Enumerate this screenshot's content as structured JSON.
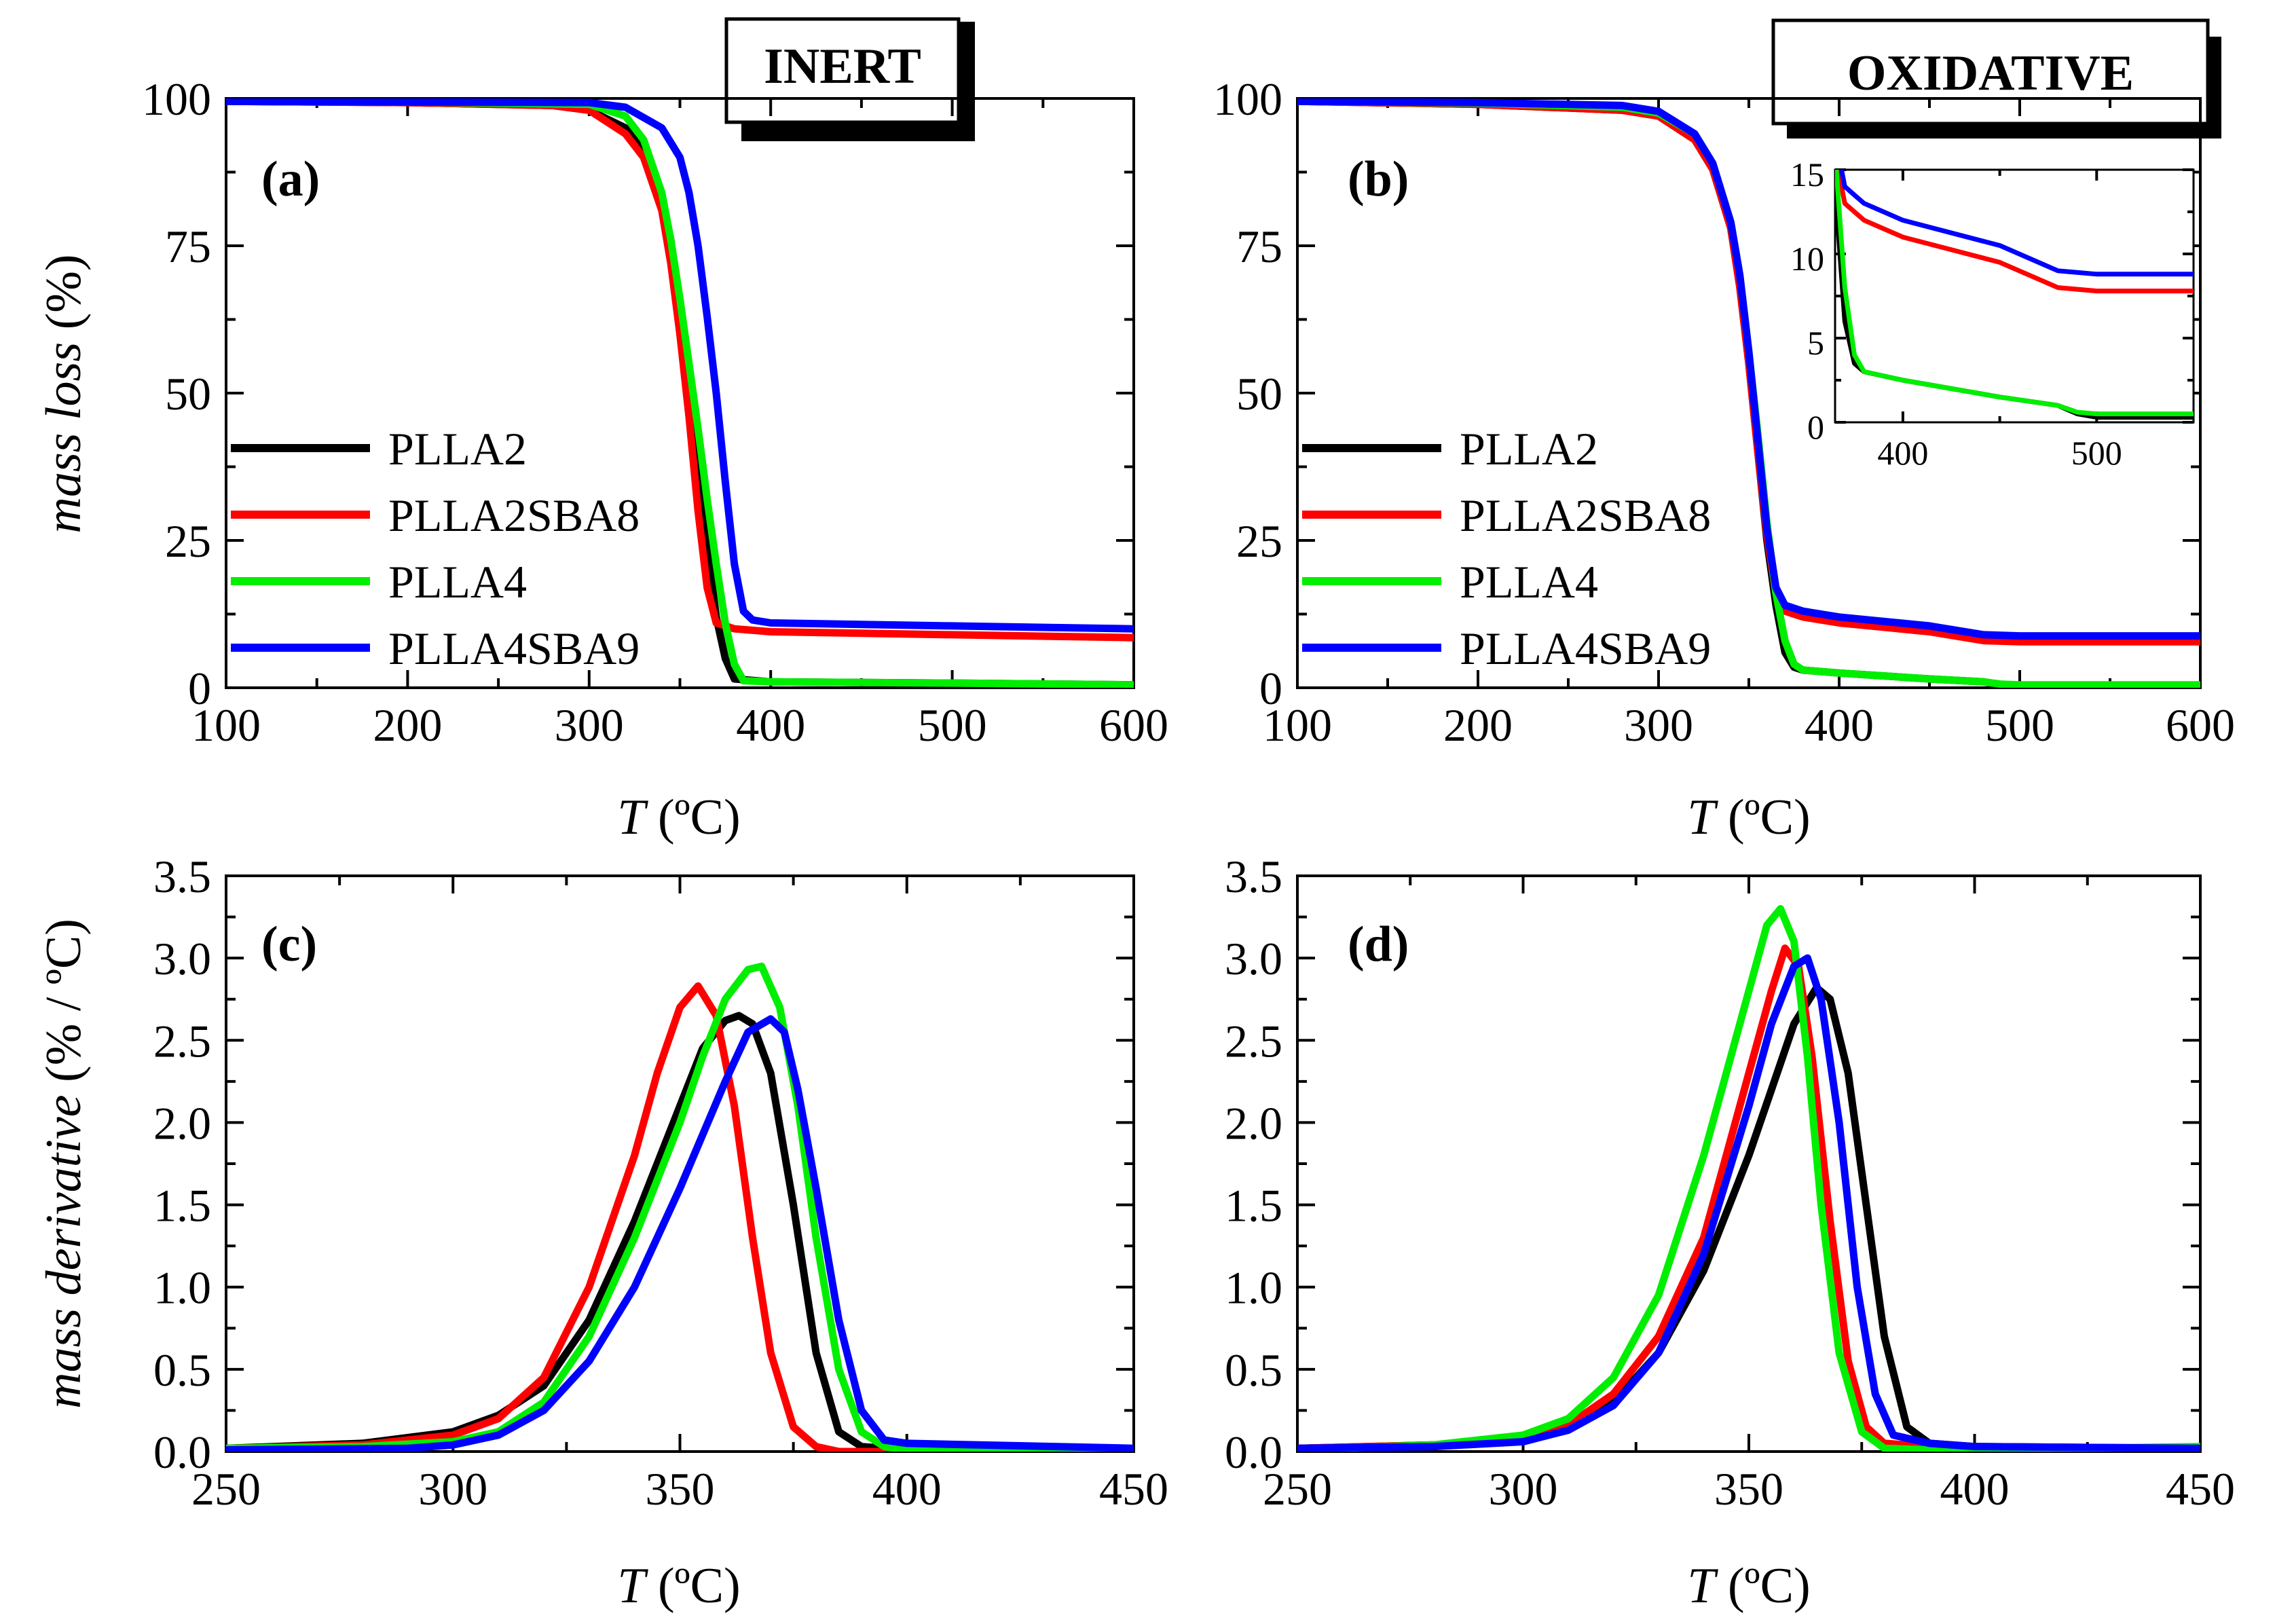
{
  "colors": {
    "PLLA2": "#000000",
    "PLLA2SBA8": "#ff0000",
    "PLLA4": "#00ee00",
    "PLLA4SBA9": "#0000ff"
  },
  "conditions": {
    "inert": "INERT",
    "oxidative": "OXIDATIVE"
  },
  "chart_data": [
    {
      "id": "a",
      "type": "line",
      "panel_label": "(a)",
      "condition": "INERT",
      "xlabel_italic": "T",
      "xlabel_unit": " (ºC)",
      "ylabel_italic": "mass loss",
      "ylabel_unit": " (%)",
      "xlim": [
        100,
        600
      ],
      "ylim": [
        0,
        100
      ],
      "xticks": [
        100,
        200,
        300,
        400,
        500,
        600
      ],
      "yticks": [
        0,
        25,
        50,
        75,
        100
      ],
      "legend": [
        "PLLA2",
        "PLLA2SBA8",
        "PLLA4",
        "PLLA4SBA9"
      ],
      "series": [
        {
          "name": "PLLA2",
          "x": [
            100,
            200,
            280,
            300,
            320,
            330,
            340,
            345,
            350,
            355,
            360,
            365,
            370,
            375,
            380,
            400,
            500,
            600
          ],
          "y": [
            99.5,
            99.3,
            98.8,
            98,
            95,
            91,
            83,
            76,
            65,
            52,
            38,
            24,
            12,
            5,
            1.5,
            1,
            0.8,
            0.5
          ]
        },
        {
          "name": "PLLA2SBA8",
          "x": [
            100,
            200,
            280,
            300,
            320,
            330,
            340,
            345,
            350,
            355,
            360,
            365,
            370,
            380,
            400,
            500,
            600
          ],
          "y": [
            99.5,
            99.3,
            98.8,
            98,
            94,
            90,
            81,
            72,
            60,
            46,
            30,
            17,
            11,
            10,
            9.5,
            9,
            8.5
          ]
        },
        {
          "name": "PLLA4",
          "x": [
            100,
            200,
            300,
            320,
            330,
            340,
            345,
            350,
            355,
            360,
            365,
            370,
            375,
            380,
            385,
            400,
            500,
            600
          ],
          "y": [
            99.5,
            99.4,
            99,
            97,
            93,
            84,
            76,
            66,
            55,
            44,
            32,
            21,
            11,
            4,
            1.2,
            1,
            0.8,
            0.5
          ]
        },
        {
          "name": "PLLA4SBA9",
          "x": [
            100,
            200,
            300,
            320,
            340,
            350,
            355,
            360,
            365,
            370,
            375,
            380,
            385,
            390,
            400,
            500,
            600
          ],
          "y": [
            99.5,
            99.4,
            99.3,
            98.5,
            95,
            90,
            84,
            75,
            63,
            50,
            35,
            21,
            13,
            11.5,
            11,
            10.5,
            10
          ]
        }
      ]
    },
    {
      "id": "b",
      "type": "line",
      "panel_label": "(b)",
      "condition": "OXIDATIVE",
      "xlabel_italic": "T",
      "xlabel_unit": " (ºC)",
      "xlim": [
        100,
        600
      ],
      "ylim": [
        0,
        100
      ],
      "xticks": [
        100,
        200,
        300,
        400,
        500,
        600
      ],
      "yticks": [
        0,
        25,
        50,
        75,
        100
      ],
      "legend": [
        "PLLA2",
        "PLLA2SBA8",
        "PLLA4",
        "PLLA4SBA9"
      ],
      "series": [
        {
          "name": "PLLA2",
          "x": [
            100,
            200,
            280,
            300,
            320,
            330,
            340,
            345,
            350,
            355,
            360,
            365,
            370,
            375,
            380,
            400,
            450,
            480,
            490,
            500,
            600
          ],
          "y": [
            99.5,
            99,
            98,
            97,
            93,
            88,
            78,
            68,
            55,
            40,
            25,
            14,
            6,
            3.5,
            3,
            2.5,
            1.5,
            1,
            0.5,
            0.3,
            0.3
          ]
        },
        {
          "name": "PLLA2SBA8",
          "x": [
            100,
            200,
            280,
            300,
            320,
            330,
            340,
            345,
            350,
            355,
            360,
            365,
            370,
            375,
            380,
            400,
            450,
            480,
            500,
            600
          ],
          "y": [
            99.5,
            99,
            98,
            97,
            93,
            88,
            78,
            68,
            55,
            40,
            26,
            16,
            13,
            12.5,
            12,
            11,
            9.5,
            8,
            7.8,
            7.8
          ]
        },
        {
          "name": "PLLA4",
          "x": [
            100,
            200,
            280,
            300,
            320,
            330,
            340,
            345,
            350,
            355,
            360,
            365,
            370,
            375,
            380,
            400,
            450,
            480,
            490,
            500,
            600
          ],
          "y": [
            99.5,
            99.2,
            98.5,
            97.5,
            94,
            89,
            79,
            70,
            57,
            43,
            28,
            16,
            8,
            4,
            3,
            2.5,
            1.5,
            1,
            0.6,
            0.5,
            0.5
          ]
        },
        {
          "name": "PLLA4SBA9",
          "x": [
            100,
            200,
            280,
            300,
            320,
            330,
            340,
            345,
            350,
            355,
            360,
            365,
            370,
            375,
            380,
            400,
            450,
            480,
            500,
            600
          ],
          "y": [
            99.5,
            99.3,
            98.8,
            97.8,
            94,
            89,
            79,
            70,
            57,
            42,
            27,
            17,
            14,
            13.5,
            13,
            12,
            10.5,
            9,
            8.8,
            8.8
          ]
        }
      ],
      "inset": {
        "xlim": [
          365,
          550
        ],
        "ylim": [
          0,
          15
        ],
        "xticks": [
          400,
          500
        ],
        "yticks": [
          0,
          5,
          10,
          15
        ]
      }
    },
    {
      "id": "c",
      "type": "line",
      "panel_label": "(c)",
      "xlabel_italic": "T",
      "xlabel_unit": " (ºC)",
      "ylabel_italic": "mass derivative",
      "ylabel_unit": " (% / ºC)",
      "xlim": [
        250,
        450
      ],
      "ylim": [
        0,
        3.5
      ],
      "xticks": [
        250,
        300,
        350,
        400,
        450
      ],
      "yticks": [
        "0.0",
        "0.5",
        "1.0",
        "1.5",
        "2.0",
        "2.5",
        "3.0",
        "3.5"
      ],
      "series": [
        {
          "name": "PLLA2",
          "x": [
            250,
            280,
            300,
            310,
            320,
            330,
            340,
            350,
            355,
            360,
            363,
            366,
            370,
            375,
            380,
            385,
            390,
            400,
            450
          ],
          "y": [
            0.02,
            0.05,
            0.12,
            0.22,
            0.4,
            0.8,
            1.4,
            2.1,
            2.45,
            2.62,
            2.65,
            2.6,
            2.3,
            1.5,
            0.6,
            0.12,
            0.03,
            0.01,
            0
          ]
        },
        {
          "name": "PLLA2SBA8",
          "x": [
            250,
            280,
            300,
            310,
            320,
            330,
            340,
            345,
            350,
            354,
            358,
            362,
            366,
            370,
            375,
            380,
            385,
            400,
            450
          ],
          "y": [
            0.02,
            0.04,
            0.1,
            0.2,
            0.45,
            1.0,
            1.8,
            2.3,
            2.7,
            2.83,
            2.65,
            2.1,
            1.3,
            0.6,
            0.15,
            0.03,
            0,
            0,
            0
          ]
        },
        {
          "name": "PLLA4",
          "x": [
            250,
            280,
            300,
            310,
            320,
            330,
            340,
            350,
            355,
            360,
            365,
            368,
            372,
            376,
            380,
            385,
            390,
            395,
            400,
            450
          ],
          "y": [
            0.02,
            0.03,
            0.06,
            0.12,
            0.3,
            0.7,
            1.3,
            2.0,
            2.4,
            2.75,
            2.93,
            2.95,
            2.7,
            2.1,
            1.3,
            0.5,
            0.12,
            0.03,
            0.01,
            0
          ]
        },
        {
          "name": "PLLA4SBA9",
          "x": [
            250,
            290,
            300,
            310,
            320,
            330,
            340,
            350,
            360,
            365,
            370,
            373,
            376,
            380,
            385,
            390,
            395,
            400,
            450
          ],
          "y": [
            0.01,
            0.02,
            0.04,
            0.1,
            0.25,
            0.55,
            1.0,
            1.6,
            2.25,
            2.55,
            2.63,
            2.55,
            2.2,
            1.6,
            0.8,
            0.25,
            0.07,
            0.05,
            0.02
          ]
        }
      ]
    },
    {
      "id": "d",
      "type": "line",
      "panel_label": "(d)",
      "xlabel_italic": "T",
      "xlabel_unit": " (ºC)",
      "xlim": [
        250,
        450
      ],
      "ylim": [
        0,
        3.5
      ],
      "xticks": [
        250,
        300,
        350,
        400,
        450
      ],
      "yticks": [
        "0.0",
        "0.5",
        "1.0",
        "1.5",
        "2.0",
        "2.5",
        "3.0",
        "3.5"
      ],
      "series": [
        {
          "name": "PLLA2",
          "x": [
            250,
            280,
            300,
            310,
            320,
            330,
            340,
            350,
            355,
            360,
            365,
            368,
            372,
            376,
            380,
            385,
            390,
            400,
            450
          ],
          "y": [
            0.02,
            0.04,
            0.08,
            0.15,
            0.3,
            0.6,
            1.1,
            1.8,
            2.2,
            2.6,
            2.82,
            2.75,
            2.3,
            1.5,
            0.7,
            0.15,
            0.05,
            0.03,
            0.02
          ]
        },
        {
          "name": "PLLA2SBA8",
          "x": [
            250,
            280,
            300,
            310,
            320,
            330,
            340,
            350,
            355,
            358,
            361,
            364,
            368,
            372,
            376,
            380,
            390,
            400,
            450
          ],
          "y": [
            0.02,
            0.04,
            0.08,
            0.16,
            0.35,
            0.7,
            1.3,
            2.3,
            2.8,
            3.06,
            2.95,
            2.4,
            1.4,
            0.55,
            0.15,
            0.05,
            0.03,
            0.02,
            0.02
          ]
        },
        {
          "name": "PLLA4",
          "x": [
            250,
            280,
            300,
            310,
            320,
            330,
            340,
            350,
            354,
            357,
            360,
            363,
            366,
            370,
            375,
            380,
            390,
            400,
            450
          ],
          "y": [
            0.01,
            0.04,
            0.1,
            0.2,
            0.45,
            0.95,
            1.8,
            2.8,
            3.2,
            3.3,
            3.1,
            2.4,
            1.5,
            0.6,
            0.12,
            0.02,
            0.01,
            0.01,
            0.03
          ]
        },
        {
          "name": "PLLA4SBA9",
          "x": [
            250,
            280,
            300,
            310,
            320,
            330,
            340,
            350,
            355,
            360,
            363,
            366,
            370,
            374,
            378,
            382,
            390,
            400,
            450
          ],
          "y": [
            0.02,
            0.03,
            0.06,
            0.13,
            0.28,
            0.6,
            1.2,
            2.1,
            2.6,
            2.95,
            3.0,
            2.75,
            2.0,
            1.0,
            0.35,
            0.1,
            0.05,
            0.03,
            0.02
          ]
        }
      ]
    }
  ]
}
